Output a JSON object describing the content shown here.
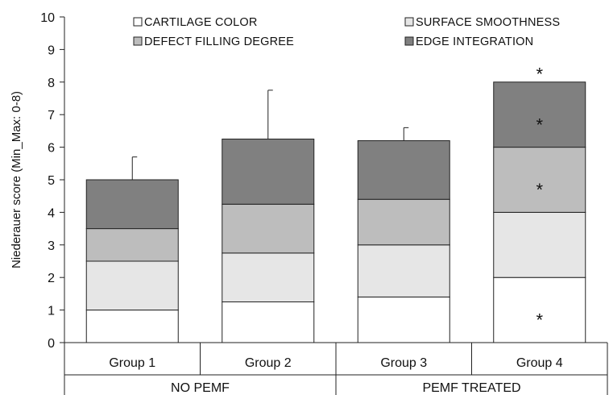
{
  "chart_data": {
    "type": "bar",
    "stacked": true,
    "ylabel": "Niederauer score (Min_Max: 0-8)",
    "ylim": [
      0,
      10
    ],
    "yticks": [
      0,
      1,
      2,
      3,
      4,
      5,
      6,
      7,
      8,
      9,
      10
    ],
    "categories": [
      "Group 1",
      "Group 2",
      "Group 3",
      "Group 4"
    ],
    "category_groups": [
      {
        "label": "NO PEMF",
        "categories": [
          "Group 1",
          "Group 2"
        ]
      },
      {
        "label": "PEMF TREATED",
        "categories": [
          "Group 3",
          "Group 4"
        ]
      }
    ],
    "series": [
      {
        "name": "CARTILAGE COLOR",
        "color": "#ffffff",
        "values": [
          1.0,
          1.25,
          1.4,
          2.0
        ]
      },
      {
        "name": "SURFACE SMOOTHNESS",
        "color": "#e6e6e6",
        "values": [
          1.5,
          1.5,
          1.6,
          2.0
        ]
      },
      {
        "name": "DEFECT FILLING DEGREE",
        "color": "#bdbdbd",
        "values": [
          1.0,
          1.5,
          1.4,
          2.0
        ]
      },
      {
        "name": "EDGE INTEGRATION",
        "color": "#808080",
        "values": [
          1.5,
          2.0,
          1.8,
          2.0
        ]
      }
    ],
    "error_bars": [
      0.7,
      1.5,
      0.4,
      0.0
    ],
    "annotations": [
      {
        "category": "Group 4",
        "series": "CARTILAGE COLOR",
        "text": "*"
      },
      {
        "category": "Group 4",
        "series": "DEFECT FILLING DEGREE",
        "text": "*"
      },
      {
        "category": "Group 4",
        "series": "EDGE INTEGRATION",
        "text": "*"
      },
      {
        "category": "Group 4",
        "series": "total",
        "text": "*"
      }
    ],
    "legend": {
      "position": "top",
      "columns": 2
    },
    "grid": false
  }
}
